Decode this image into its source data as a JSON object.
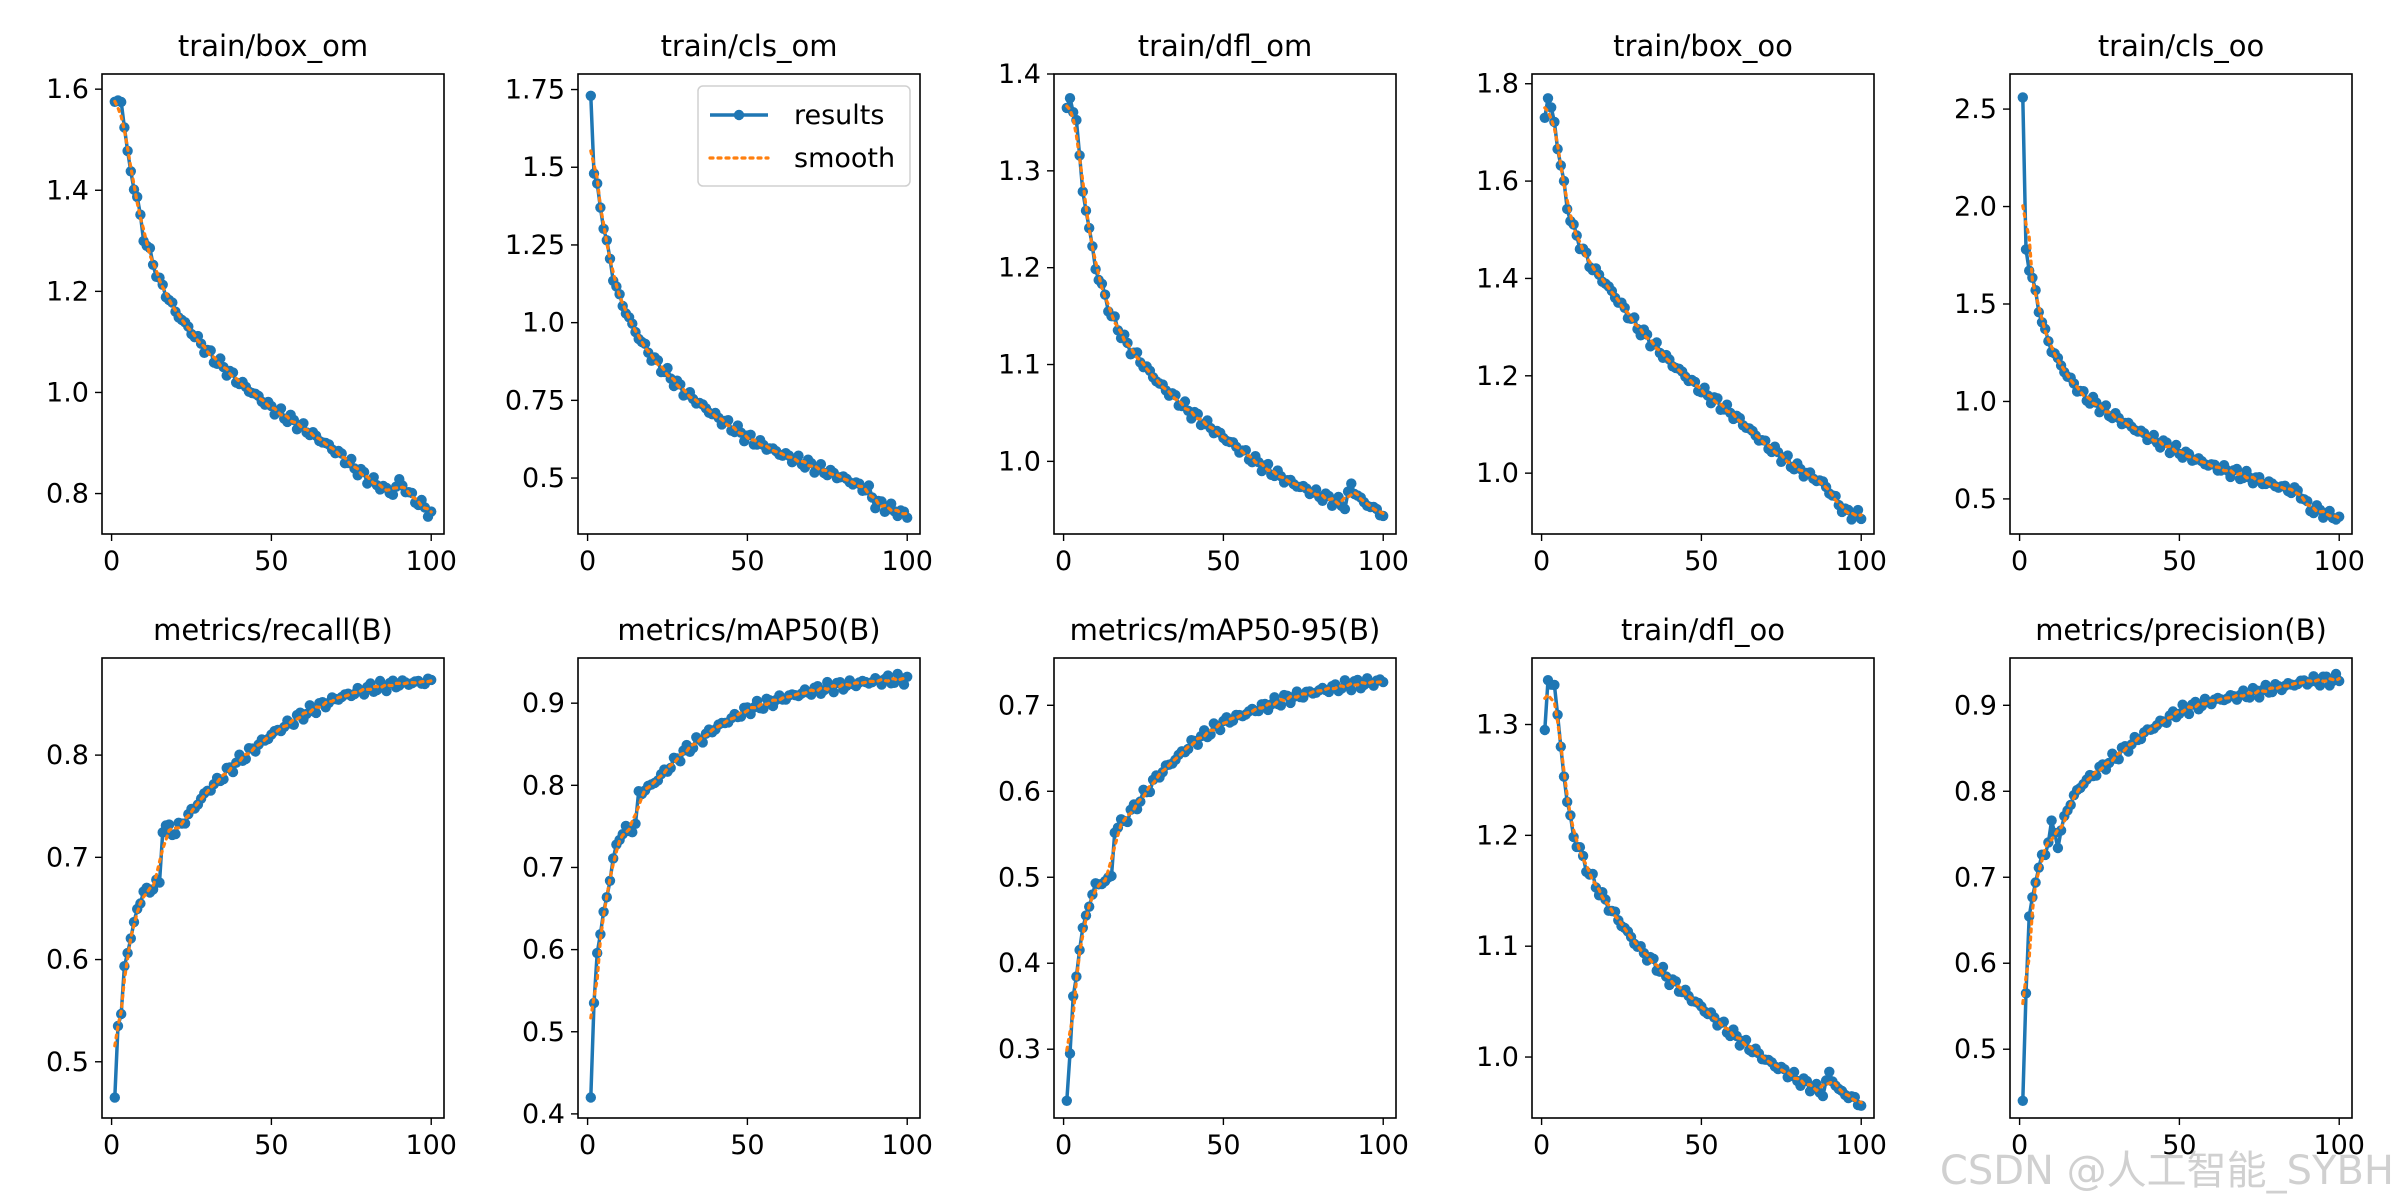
{
  "watermark": "CSDN @人工智能_SYBH",
  "colors": {
    "results": "#1f77b4",
    "smooth": "#ff7f0e"
  },
  "legend": {
    "results_label": "results",
    "smooth_label": "smooth"
  },
  "chart_data": [
    {
      "type": "line",
      "title": "train/box_om",
      "x": [
        1,
        100
      ],
      "anchors": [
        [
          1,
          1.575
        ],
        [
          3,
          1.58
        ],
        [
          5,
          1.47
        ],
        [
          8,
          1.38
        ],
        [
          10,
          1.31
        ],
        [
          15,
          1.22
        ],
        [
          20,
          1.16
        ],
        [
          30,
          1.08
        ],
        [
          40,
          1.02
        ],
        [
          50,
          0.97
        ],
        [
          60,
          0.93
        ],
        [
          70,
          0.885
        ],
        [
          80,
          0.83
        ],
        [
          88,
          0.8
        ],
        [
          90,
          0.825
        ],
        [
          93,
          0.8
        ],
        [
          100,
          0.76
        ]
      ],
      "yticks": [
        0.8,
        1.0,
        1.2,
        1.4,
        1.6
      ],
      "ylim": [
        0.72,
        1.63
      ],
      "xticks": [
        0,
        50,
        100
      ],
      "legend": false
    },
    {
      "type": "line",
      "title": "train/cls_om",
      "x": [
        1,
        100
      ],
      "anchors": [
        [
          1,
          1.73
        ],
        [
          2,
          1.48
        ],
        [
          4,
          1.38
        ],
        [
          6,
          1.25
        ],
        [
          8,
          1.15
        ],
        [
          10,
          1.08
        ],
        [
          15,
          0.97
        ],
        [
          20,
          0.89
        ],
        [
          30,
          0.78
        ],
        [
          40,
          0.7
        ],
        [
          50,
          0.63
        ],
        [
          60,
          0.58
        ],
        [
          70,
          0.54
        ],
        [
          80,
          0.5
        ],
        [
          88,
          0.46
        ],
        [
          90,
          0.42
        ],
        [
          100,
          0.38
        ]
      ],
      "yticks": [
        0.5,
        0.75,
        1.0,
        1.25,
        1.5,
        1.75
      ],
      "ylim": [
        0.32,
        1.8
      ],
      "xticks": [
        0,
        50,
        100
      ],
      "legend": true
    },
    {
      "type": "line",
      "title": "train/dfl_om",
      "x": [
        1,
        100
      ],
      "anchors": [
        [
          1,
          1.365
        ],
        [
          2,
          1.375
        ],
        [
          4,
          1.35
        ],
        [
          6,
          1.28
        ],
        [
          8,
          1.24
        ],
        [
          10,
          1.2
        ],
        [
          15,
          1.15
        ],
        [
          20,
          1.12
        ],
        [
          30,
          1.08
        ],
        [
          40,
          1.05
        ],
        [
          50,
          1.025
        ],
        [
          60,
          1.0
        ],
        [
          70,
          0.98
        ],
        [
          80,
          0.965
        ],
        [
          88,
          0.955
        ],
        [
          90,
          0.975
        ],
        [
          93,
          0.96
        ],
        [
          100,
          0.945
        ]
      ],
      "yticks": [
        1.0,
        1.1,
        1.2,
        1.3,
        1.4
      ],
      "ylim": [
        0.925,
        1.4
      ],
      "xticks": [
        0,
        50,
        100
      ],
      "legend": false
    },
    {
      "type": "line",
      "title": "train/box_oo",
      "x": [
        1,
        100
      ],
      "anchors": [
        [
          1,
          1.73
        ],
        [
          2,
          1.77
        ],
        [
          4,
          1.72
        ],
        [
          6,
          1.63
        ],
        [
          8,
          1.55
        ],
        [
          10,
          1.5
        ],
        [
          15,
          1.43
        ],
        [
          20,
          1.39
        ],
        [
          30,
          1.3
        ],
        [
          40,
          1.23
        ],
        [
          50,
          1.17
        ],
        [
          60,
          1.12
        ],
        [
          70,
          1.06
        ],
        [
          80,
          1.01
        ],
        [
          88,
          0.98
        ],
        [
          95,
          0.92
        ],
        [
          100,
          0.91
        ]
      ],
      "yticks": [
        1.0,
        1.2,
        1.4,
        1.6,
        1.8
      ],
      "ylim": [
        0.875,
        1.82
      ],
      "xticks": [
        0,
        50,
        100
      ],
      "legend": false
    },
    {
      "type": "line",
      "title": "train/cls_oo",
      "x": [
        1,
        100
      ],
      "anchors": [
        [
          1,
          2.56
        ],
        [
          2,
          1.78
        ],
        [
          4,
          1.62
        ],
        [
          6,
          1.48
        ],
        [
          8,
          1.35
        ],
        [
          10,
          1.27
        ],
        [
          15,
          1.13
        ],
        [
          20,
          1.03
        ],
        [
          30,
          0.92
        ],
        [
          40,
          0.82
        ],
        [
          50,
          0.74
        ],
        [
          60,
          0.67
        ],
        [
          70,
          0.62
        ],
        [
          80,
          0.57
        ],
        [
          88,
          0.53
        ],
        [
          90,
          0.46
        ],
        [
          100,
          0.4
        ]
      ],
      "yticks": [
        0.5,
        1.0,
        1.5,
        2.0,
        2.5
      ],
      "ylim": [
        0.32,
        2.68
      ],
      "xticks": [
        0,
        50,
        100
      ],
      "legend": false
    },
    {
      "type": "line",
      "title": "metrics/recall(B)",
      "x": [
        1,
        100
      ],
      "anchors": [
        [
          1,
          0.465
        ],
        [
          2,
          0.535
        ],
        [
          3,
          0.545
        ],
        [
          4,
          0.595
        ],
        [
          6,
          0.62
        ],
        [
          8,
          0.65
        ],
        [
          10,
          0.665
        ],
        [
          15,
          0.675
        ],
        [
          16,
          0.73
        ],
        [
          20,
          0.725
        ],
        [
          30,
          0.765
        ],
        [
          40,
          0.795
        ],
        [
          50,
          0.82
        ],
        [
          60,
          0.84
        ],
        [
          70,
          0.855
        ],
        [
          80,
          0.865
        ],
        [
          90,
          0.87
        ],
        [
          100,
          0.872
        ]
      ],
      "yticks": [
        0.5,
        0.6,
        0.7,
        0.8
      ],
      "ylim": [
        0.445,
        0.895
      ],
      "xticks": [
        0,
        50,
        100
      ],
      "legend": false
    },
    {
      "type": "line",
      "title": "metrics/mAP50(B)",
      "x": [
        1,
        100
      ],
      "anchors": [
        [
          1,
          0.42
        ],
        [
          2,
          0.535
        ],
        [
          3,
          0.6
        ],
        [
          5,
          0.64
        ],
        [
          7,
          0.69
        ],
        [
          10,
          0.74
        ],
        [
          15,
          0.75
        ],
        [
          16,
          0.79
        ],
        [
          20,
          0.8
        ],
        [
          30,
          0.84
        ],
        [
          40,
          0.87
        ],
        [
          50,
          0.892
        ],
        [
          60,
          0.905
        ],
        [
          70,
          0.915
        ],
        [
          80,
          0.922
        ],
        [
          90,
          0.927
        ],
        [
          100,
          0.93
        ]
      ],
      "yticks": [
        0.4,
        0.5,
        0.6,
        0.7,
        0.8,
        0.9
      ],
      "ylim": [
        0.395,
        0.955
      ],
      "xticks": [
        0,
        50,
        100
      ],
      "legend": false
    },
    {
      "type": "line",
      "title": "metrics/mAP50-95(B)",
      "x": [
        1,
        100
      ],
      "anchors": [
        [
          1,
          0.24
        ],
        [
          2,
          0.295
        ],
        [
          3,
          0.355
        ],
        [
          5,
          0.42
        ],
        [
          8,
          0.47
        ],
        [
          10,
          0.49
        ],
        [
          15,
          0.5
        ],
        [
          16,
          0.555
        ],
        [
          20,
          0.57
        ],
        [
          30,
          0.62
        ],
        [
          40,
          0.655
        ],
        [
          50,
          0.68
        ],
        [
          60,
          0.695
        ],
        [
          70,
          0.708
        ],
        [
          80,
          0.717
        ],
        [
          90,
          0.724
        ],
        [
          100,
          0.728
        ]
      ],
      "yticks": [
        0.3,
        0.4,
        0.5,
        0.6,
        0.7
      ],
      "ylim": [
        0.22,
        0.755
      ],
      "xticks": [
        0,
        50,
        100
      ],
      "legend": false
    },
    {
      "type": "line",
      "title": "train/dfl_oo",
      "x": [
        1,
        100
      ],
      "anchors": [
        [
          1,
          1.295
        ],
        [
          2,
          1.34
        ],
        [
          4,
          1.335
        ],
        [
          6,
          1.28
        ],
        [
          8,
          1.23
        ],
        [
          10,
          1.2
        ],
        [
          15,
          1.165
        ],
        [
          20,
          1.14
        ],
        [
          30,
          1.1
        ],
        [
          40,
          1.07
        ],
        [
          50,
          1.045
        ],
        [
          60,
          1.02
        ],
        [
          70,
          0.998
        ],
        [
          80,
          0.98
        ],
        [
          88,
          0.968
        ],
        [
          90,
          0.985
        ],
        [
          93,
          0.97
        ],
        [
          100,
          0.958
        ]
      ],
      "yticks": [
        1.0,
        1.1,
        1.2,
        1.3
      ],
      "ylim": [
        0.945,
        1.36
      ],
      "xticks": [
        0,
        50,
        100
      ],
      "legend": false
    },
    {
      "type": "line",
      "title": "metrics/precision(B)",
      "x": [
        1,
        100
      ],
      "anchors": [
        [
          1,
          0.44
        ],
        [
          2,
          0.565
        ],
        [
          3,
          0.65
        ],
        [
          5,
          0.7
        ],
        [
          8,
          0.73
        ],
        [
          10,
          0.76
        ],
        [
          12,
          0.74
        ],
        [
          15,
          0.78
        ],
        [
          18,
          0.8
        ],
        [
          20,
          0.81
        ],
        [
          30,
          0.84
        ],
        [
          40,
          0.87
        ],
        [
          50,
          0.893
        ],
        [
          60,
          0.905
        ],
        [
          70,
          0.912
        ],
        [
          80,
          0.92
        ],
        [
          90,
          0.928
        ],
        [
          100,
          0.93
        ]
      ],
      "yticks": [
        0.5,
        0.6,
        0.7,
        0.8,
        0.9
      ],
      "ylim": [
        0.42,
        0.955
      ],
      "xticks": [
        0,
        50,
        100
      ],
      "legend": false
    }
  ]
}
